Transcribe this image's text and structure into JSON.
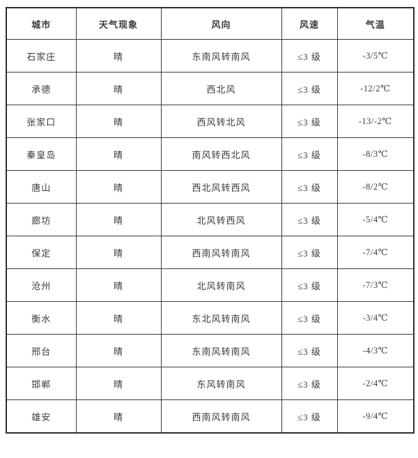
{
  "table": {
    "headers": [
      "城市",
      "天气现象",
      "风向",
      "风速",
      "气温"
    ],
    "rows": [
      [
        "石家庄",
        "晴",
        "东南风转南风",
        "≤3 级",
        "-3/5℃"
      ],
      [
        "承德",
        "晴",
        "西北风",
        "≤3 级",
        "-12/2℃"
      ],
      [
        "张家口",
        "晴",
        "西风转北风",
        "≤3 级",
        "-13/-2℃"
      ],
      [
        "秦皇岛",
        "晴",
        "南风转西北风",
        "≤3 级",
        "-8/3℃"
      ],
      [
        "唐山",
        "晴",
        "西北风转西风",
        "≤3 级",
        "-8/2℃"
      ],
      [
        "廊坊",
        "晴",
        "北风转西风",
        "≤3 级",
        "-5/4℃"
      ],
      [
        "保定",
        "晴",
        "西南风转南风",
        "≤3 级",
        "-7/4℃"
      ],
      [
        "沧州",
        "晴",
        "北风转南风",
        "≤3 级",
        "-7/3℃"
      ],
      [
        "衡水",
        "晴",
        "东北风转南风",
        "≤3 级",
        "-3/4℃"
      ],
      [
        "邢台",
        "晴",
        "东南风转南风",
        "≤3 级",
        "-4/3℃"
      ],
      [
        "邯郸",
        "晴",
        "东风转南风",
        "≤3 级",
        "-2/4℃"
      ],
      [
        "雄安",
        "晴",
        "西南风转南风",
        "≤3 级",
        "-9/4℃"
      ]
    ],
    "colors": {
      "border_outer": "#2e2e2e",
      "border_inner": "#3a3a3a",
      "text": "#3b3b3b",
      "background": "#ffffff"
    }
  }
}
